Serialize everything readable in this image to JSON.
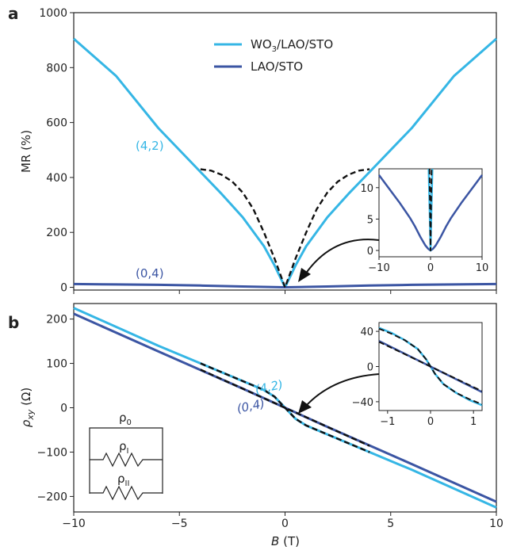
{
  "chart_data": [
    {
      "panel": "a",
      "type": "line",
      "ylabel": "MR (%)",
      "xlim": [
        -10,
        10
      ],
      "ylim": [
        -10,
        1000
      ],
      "yticks": [
        0,
        200,
        400,
        600,
        800,
        1000
      ],
      "legend_placement": "top-center",
      "series": [
        {
          "name": "WO3/LAO/STO",
          "label_main": "WO",
          "label_sub": "3",
          "label_rest": "/LAO/STO",
          "color": "#35b6e5",
          "x": [
            -10,
            -8,
            -6,
            -4,
            -3,
            -2,
            -1,
            -0.5,
            0,
            0.5,
            1,
            2,
            3,
            4,
            6,
            8,
            10
          ],
          "y": [
            905,
            770,
            580,
            420,
            340,
            255,
            150,
            80,
            0,
            80,
            150,
            255,
            340,
            420,
            580,
            770,
            905
          ]
        },
        {
          "name": "LAO/STO",
          "color": "#3b55a3",
          "x": [
            -10,
            -8,
            -6,
            -4,
            -2,
            -1,
            0,
            1,
            2,
            4,
            6,
            8,
            10
          ],
          "y": [
            12,
            10.5,
            9,
            6.5,
            3,
            1.5,
            0,
            1.5,
            3,
            6.5,
            9,
            10.5,
            12
          ]
        },
        {
          "name": "fit",
          "color": "#111111",
          "dashed": true,
          "x": [
            -4,
            -3.5,
            -3,
            -2.5,
            -2,
            -1.5,
            -1,
            -0.5,
            0,
            0.5,
            1,
            1.5,
            2,
            2.5,
            3,
            3.5,
            4
          ],
          "y": [
            430,
            425,
            410,
            385,
            345,
            285,
            200,
            105,
            0,
            105,
            200,
            285,
            345,
            385,
            410,
            425,
            430
          ]
        }
      ],
      "annotations": [
        {
          "text": "(4,2)",
          "x": -6.3,
          "y": 520,
          "color": "#35b6e5"
        },
        {
          "text": "(0,4)",
          "x": -6.6,
          "y": 45,
          "color": "#3b55a3"
        }
      ],
      "inset": {
        "xlim": [
          -10,
          10
        ],
        "ylim": [
          -1,
          13
        ],
        "xticks": [
          -10,
          0,
          10
        ],
        "yticks": [
          0,
          5,
          10
        ],
        "series": [
          {
            "color": "#3b55a3",
            "x": [
              -10,
              -8,
              -6,
              -4,
              -3,
              -2,
              -1,
              -0.5,
              0,
              0.5,
              1,
              2,
              3,
              4,
              6,
              8,
              10
            ],
            "y": [
              12,
              9.8,
              7.6,
              5.2,
              3.8,
              2.2,
              0.8,
              0.3,
              0,
              0.3,
              0.8,
              2.2,
              3.8,
              5.2,
              7.6,
              9.8,
              12
            ]
          },
          {
            "color": "#35b6e5",
            "x": [
              -0.35,
              -0.15,
              0,
              0.15,
              0.35
            ],
            "y": [
              13,
              6,
              0,
              6,
              13
            ]
          },
          {
            "color": "#111111",
            "dashed": true,
            "x": [
              -0.2,
              -0.08,
              0,
              0.08,
              0.2
            ],
            "y": [
              13,
              5,
              0,
              5,
              13
            ]
          }
        ]
      }
    },
    {
      "panel": "b",
      "type": "line",
      "xlabel": "B (T)",
      "xlabel_italic": "B",
      "xlabel_rest": " (T)",
      "ylabel": "ρxy (Ω)",
      "ylabel_main": "ρ",
      "ylabel_sub": "xy",
      "ylabel_unit": " (Ω)",
      "xlim": [
        -10,
        10
      ],
      "ylim": [
        -235,
        235
      ],
      "xticks": [
        -10,
        -5,
        0,
        5,
        10
      ],
      "yticks": [
        -200,
        -100,
        0,
        100,
        200
      ],
      "series": [
        {
          "name": "WO3/LAO/STO",
          "color": "#35b6e5",
          "x": [
            -10,
            -6,
            -4,
            -2,
            -1,
            -0.5,
            0,
            0.5,
            1,
            2,
            4,
            6,
            10
          ],
          "y": [
            225,
            140,
            100,
            60,
            40,
            25,
            0,
            -25,
            -40,
            -60,
            -100,
            -140,
            -225
          ]
        },
        {
          "name": "LAO/STO",
          "color": "#3b55a3",
          "x": [
            -10,
            -6,
            -4,
            -2,
            0,
            2,
            4,
            6,
            10
          ],
          "y": [
            212,
            127,
            85,
            43,
            0,
            -43,
            -85,
            -127,
            -212
          ]
        },
        {
          "name": "fit",
          "color": "#111111",
          "dashed": true,
          "x": [
            -4,
            -2,
            -1,
            -0.5,
            0,
            0.5,
            1,
            2,
            4
          ],
          "y": [
            100,
            60,
            40,
            25,
            0,
            -25,
            -40,
            -60,
            -100
          ]
        },
        {
          "name": "fit2",
          "color": "#111111",
          "dashed": true,
          "x": [
            -4,
            0,
            4
          ],
          "y": [
            86,
            0,
            -86
          ]
        }
      ],
      "annotations": [
        {
          "text": "(4,2)",
          "x": -1.4,
          "y": 50,
          "color": "#35b6e5"
        },
        {
          "text": "(0,4)",
          "x": -2.2,
          "y": 10,
          "color": "#3b55a3"
        }
      ],
      "circuit": {
        "r0": "ρ",
        "r0_sub": "0",
        "r1": "ρ",
        "r1_sub": "I",
        "r2": "ρ",
        "r2_sub": "II"
      },
      "inset": {
        "xlim": [
          -1.2,
          1.2
        ],
        "ylim": [
          -50,
          50
        ],
        "xticks": [
          -1,
          0,
          1
        ],
        "yticks": [
          -40,
          0,
          40
        ],
        "series": [
          {
            "color": "#35b6e5",
            "x": [
              -1.2,
              -0.9,
              -0.6,
              -0.3,
              -0.1,
              0,
              0.1,
              0.3,
              0.6,
              0.9,
              1.2
            ],
            "y": [
              44,
              38,
              30,
              20,
              8,
              0,
              -8,
              -20,
              -30,
              -38,
              -44
            ]
          },
          {
            "color": "#3b55a3",
            "x": [
              -1.2,
              0,
              1.2
            ],
            "y": [
              29,
              0,
              -29
            ]
          },
          {
            "color": "#111111",
            "dashed": true,
            "x": [
              -1.2,
              -0.9,
              -0.6,
              -0.3,
              -0.1,
              0,
              0.1,
              0.3,
              0.6,
              0.9,
              1.2
            ],
            "y": [
              43,
              37,
              30,
              20,
              8,
              0,
              -8,
              -20,
              -30,
              -37,
              -43
            ]
          },
          {
            "color": "#111111",
            "dashed": true,
            "x": [
              -1.2,
              0,
              1.2
            ],
            "y": [
              28,
              0,
              -28
            ]
          }
        ]
      }
    }
  ]
}
